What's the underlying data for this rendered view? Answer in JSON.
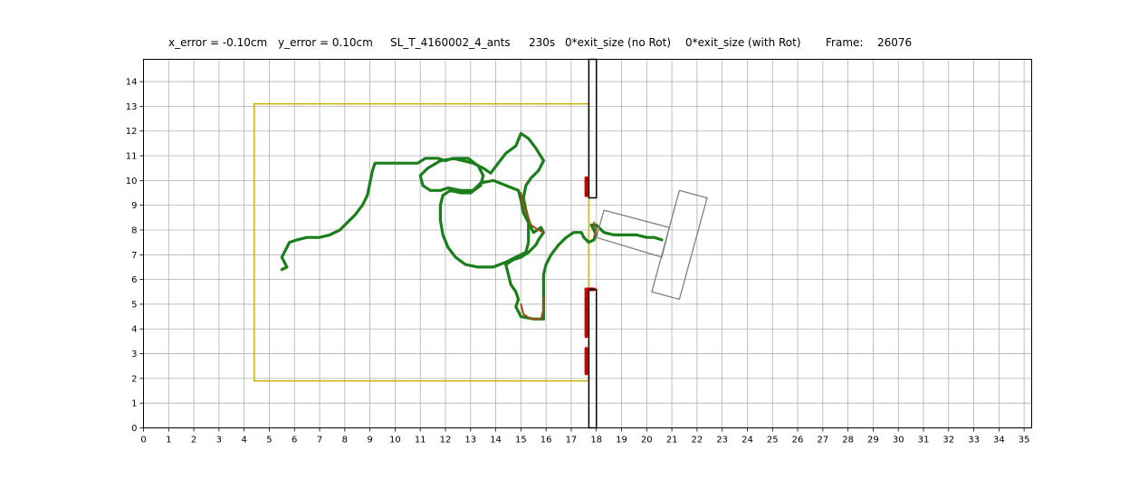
{
  "header": {
    "x_error": "x_error = -0.10cm",
    "y_error": "y_error = 0.10cm",
    "run_name": "SL_T_4160002_4_ants",
    "time": "230s",
    "exit_no_rot": "0*exit_size  (no Rot)",
    "exit_with_rot": "0*exit_size  (with Rot)",
    "frame_label": "Frame:",
    "frame_value": "26076"
  },
  "chart_data": {
    "type": "line",
    "title": "",
    "xlabel": "",
    "ylabel": "",
    "xlim": [
      0,
      35.3
    ],
    "ylim": [
      0,
      14.9
    ],
    "grid": true,
    "xticks": [
      0,
      1,
      2,
      3,
      4,
      5,
      6,
      7,
      8,
      9,
      10,
      11,
      12,
      13,
      14,
      15,
      16,
      17,
      18,
      19,
      20,
      21,
      22,
      23,
      24,
      25,
      26,
      27,
      28,
      29,
      30,
      31,
      32,
      33,
      34,
      35
    ],
    "yticks": [
      0,
      1,
      2,
      3,
      4,
      5,
      6,
      7,
      8,
      9,
      10,
      11,
      12,
      13,
      14
    ],
    "colors": {
      "grid": "#b0b0b0",
      "trajectory": "#1a7f1a",
      "trajectory_overlay": "#9b4f1a",
      "contact": "#cc0000",
      "arena": "#c8b400",
      "wall": "#000000",
      "load": "#808080"
    },
    "arena_rect": {
      "x0": 4.4,
      "y0": 1.9,
      "x1": 17.7,
      "y1": 13.1
    },
    "walls": [
      {
        "x0": 17.7,
        "y0": 9.3,
        "x1": 18.0,
        "y1": 14.9
      },
      {
        "x0": 17.7,
        "y0": 0.0,
        "x1": 18.0,
        "y1": 5.6
      }
    ],
    "load_shape": [
      [
        [
          18.3,
          8.8
        ],
        [
          20.9,
          8.1
        ],
        [
          20.6,
          6.9
        ],
        [
          18.0,
          7.7
        ],
        [
          18.3,
          8.8
        ]
      ],
      [
        [
          21.3,
          9.6
        ],
        [
          22.4,
          9.3
        ],
        [
          21.3,
          5.2
        ],
        [
          20.2,
          5.5
        ],
        [
          21.3,
          9.6
        ]
      ]
    ],
    "trajectory": [
      [
        5.5,
        6.4
      ],
      [
        5.7,
        6.5
      ],
      [
        5.6,
        6.7
      ],
      [
        5.5,
        6.9
      ],
      [
        5.6,
        7.1
      ],
      [
        5.7,
        7.3
      ],
      [
        5.8,
        7.5
      ],
      [
        6.1,
        7.6
      ],
      [
        6.5,
        7.7
      ],
      [
        7.0,
        7.7
      ],
      [
        7.4,
        7.8
      ],
      [
        7.8,
        8.0
      ],
      [
        8.1,
        8.3
      ],
      [
        8.4,
        8.6
      ],
      [
        8.7,
        9.0
      ],
      [
        8.9,
        9.4
      ],
      [
        9.0,
        9.9
      ],
      [
        9.1,
        10.4
      ],
      [
        9.2,
        10.7
      ],
      [
        9.6,
        10.7
      ],
      [
        10.2,
        10.7
      ],
      [
        10.9,
        10.7
      ],
      [
        11.2,
        10.9
      ],
      [
        11.7,
        10.9
      ],
      [
        12.0,
        10.8
      ],
      [
        12.3,
        10.9
      ],
      [
        12.7,
        10.8
      ],
      [
        13.1,
        10.7
      ],
      [
        13.5,
        10.5
      ],
      [
        13.8,
        10.3
      ],
      [
        14.1,
        10.7
      ],
      [
        14.4,
        11.1
      ],
      [
        14.8,
        11.4
      ],
      [
        15.0,
        11.9
      ],
      [
        15.3,
        11.7
      ],
      [
        15.6,
        11.3
      ],
      [
        15.9,
        10.8
      ],
      [
        15.7,
        10.4
      ],
      [
        15.4,
        10.1
      ],
      [
        15.2,
        9.8
      ],
      [
        15.1,
        9.3
      ],
      [
        15.2,
        8.8
      ],
      [
        15.3,
        8.4
      ],
      [
        15.3,
        8.0
      ],
      [
        15.3,
        7.5
      ],
      [
        15.2,
        7.1
      ],
      [
        14.8,
        6.9
      ],
      [
        14.4,
        6.7
      ],
      [
        13.9,
        6.5
      ],
      [
        13.3,
        6.5
      ],
      [
        12.8,
        6.6
      ],
      [
        12.4,
        6.9
      ],
      [
        12.1,
        7.3
      ],
      [
        11.9,
        7.8
      ],
      [
        11.8,
        8.4
      ],
      [
        11.8,
        9.0
      ],
      [
        11.9,
        9.4
      ],
      [
        12.2,
        9.6
      ],
      [
        12.6,
        9.5
      ],
      [
        13.0,
        9.5
      ],
      [
        13.4,
        9.8
      ],
      [
        13.5,
        10.2
      ],
      [
        13.3,
        10.6
      ],
      [
        12.9,
        10.9
      ],
      [
        12.4,
        10.9
      ],
      [
        11.8,
        10.8
      ],
      [
        11.3,
        10.5
      ],
      [
        11.0,
        10.2
      ],
      [
        11.1,
        9.8
      ],
      [
        11.4,
        9.6
      ],
      [
        11.8,
        9.6
      ],
      [
        12.1,
        9.7
      ],
      [
        12.6,
        9.6
      ],
      [
        13.1,
        9.6
      ],
      [
        13.4,
        9.9
      ],
      [
        13.9,
        10.0
      ],
      [
        14.4,
        9.8
      ],
      [
        14.9,
        9.6
      ],
      [
        15.0,
        9.2
      ],
      [
        15.1,
        8.7
      ],
      [
        15.3,
        8.3
      ],
      [
        15.5,
        7.9
      ],
      [
        15.8,
        8.1
      ],
      [
        15.9,
        7.9
      ],
      [
        15.7,
        7.6
      ],
      [
        15.6,
        7.4
      ],
      [
        15.3,
        7.1
      ],
      [
        15.0,
        6.9
      ],
      [
        14.7,
        6.8
      ],
      [
        14.4,
        6.6
      ],
      [
        14.5,
        6.2
      ],
      [
        14.6,
        5.8
      ],
      [
        14.8,
        5.5
      ],
      [
        14.9,
        5.2
      ],
      [
        14.8,
        4.9
      ],
      [
        15.0,
        4.5
      ],
      [
        15.5,
        4.4
      ],
      [
        15.9,
        4.4
      ],
      [
        15.9,
        4.8
      ],
      [
        15.9,
        5.3
      ],
      [
        15.9,
        5.8
      ],
      [
        15.9,
        6.2
      ],
      [
        16.0,
        6.6
      ],
      [
        16.2,
        7.0
      ],
      [
        16.5,
        7.4
      ],
      [
        16.8,
        7.7
      ],
      [
        17.1,
        7.9
      ],
      [
        17.4,
        7.9
      ],
      [
        17.5,
        7.7
      ],
      [
        17.7,
        7.5
      ],
      [
        17.9,
        7.6
      ],
      [
        18.0,
        7.8
      ],
      [
        17.9,
        8.0
      ],
      [
        17.8,
        8.2
      ],
      [
        18.0,
        8.2
      ],
      [
        18.3,
        7.9
      ],
      [
        18.7,
        7.8
      ],
      [
        19.1,
        7.8
      ],
      [
        19.6,
        7.8
      ],
      [
        20.0,
        7.7
      ],
      [
        20.3,
        7.7
      ],
      [
        20.6,
        7.6
      ]
    ],
    "overlay_segments": [
      [
        [
          15.0,
          9.5
        ],
        [
          15.1,
          9.0
        ],
        [
          15.3,
          8.5
        ],
        [
          15.4,
          8.2
        ],
        [
          15.7,
          8.0
        ],
        [
          15.9,
          7.9
        ]
      ],
      [
        [
          15.0,
          5.0
        ],
        [
          15.1,
          4.6
        ],
        [
          15.4,
          4.4
        ],
        [
          15.8,
          4.4
        ],
        [
          15.9,
          4.8
        ],
        [
          15.9,
          5.3
        ]
      ],
      [
        [
          17.9,
          8.3
        ],
        [
          18.0,
          8.0
        ],
        [
          17.9,
          7.7
        ]
      ]
    ],
    "contact_segments": [
      [
        [
          17.6,
          9.4
        ],
        [
          17.6,
          9.7
        ],
        [
          17.6,
          10.1
        ]
      ],
      [
        [
          17.6,
          5.6
        ],
        [
          17.6,
          5.2
        ],
        [
          17.6,
          4.8
        ],
        [
          17.6,
          4.4
        ],
        [
          17.6,
          4.0
        ],
        [
          17.6,
          3.7
        ]
      ],
      [
        [
          17.6,
          3.2
        ],
        [
          17.6,
          2.8
        ],
        [
          17.6,
          2.5
        ],
        [
          17.6,
          2.2
        ]
      ],
      [
        [
          17.6,
          5.6
        ],
        [
          17.9,
          5.6
        ]
      ]
    ]
  }
}
